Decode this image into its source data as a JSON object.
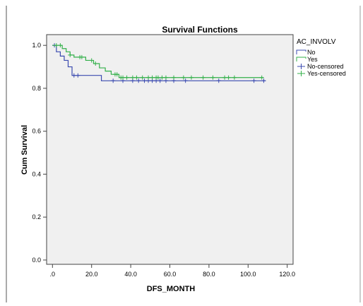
{
  "chart_data": {
    "type": "line",
    "step": true,
    "title": "Survival Functions",
    "xlabel": "DFS_MONTH",
    "ylabel": "Cum Survival",
    "xlim": [
      -3,
      123
    ],
    "ylim": [
      -0.02,
      1.05
    ],
    "x_ticks": [
      0,
      20,
      40,
      60,
      80,
      100,
      120
    ],
    "x_tick_labels": [
      ".0",
      "20.0",
      "40.0",
      "60.0",
      "80.0",
      "100.0",
      "120.0"
    ],
    "y_ticks": [
      0.0,
      0.2,
      0.4,
      0.6,
      0.8,
      1.0
    ],
    "y_tick_labels": [
      "0.0",
      "0.2",
      "0.4",
      "0.6",
      "0.8",
      "1.0"
    ],
    "grid": false,
    "plot_background": "#f0f0f0",
    "legend": {
      "title": "AC_INVOLV",
      "placement": "top-right outside",
      "entries": [
        "No",
        "Yes",
        "No-censored",
        "Yes-censored"
      ]
    },
    "series": [
      {
        "name": "No",
        "color": "#3b4bb0",
        "steps": [
          [
            0,
            1.0
          ],
          [
            2,
            0.97
          ],
          [
            4,
            0.95
          ],
          [
            6,
            0.93
          ],
          [
            8,
            0.9
          ],
          [
            10,
            0.86
          ],
          [
            25,
            0.835
          ],
          [
            109,
            0.835
          ]
        ],
        "censored": [
          1,
          11,
          13,
          31,
          36,
          41,
          44,
          47,
          49,
          51,
          53,
          55,
          58,
          62,
          68,
          85,
          103,
          108
        ]
      },
      {
        "name": "Yes",
        "color": "#33b04a",
        "steps": [
          [
            0,
            1.0
          ],
          [
            5,
            0.985
          ],
          [
            7,
            0.97
          ],
          [
            9,
            0.955
          ],
          [
            11,
            0.945
          ],
          [
            17,
            0.93
          ],
          [
            21,
            0.915
          ],
          [
            24,
            0.895
          ],
          [
            27,
            0.88
          ],
          [
            30,
            0.865
          ],
          [
            34,
            0.85
          ],
          [
            108,
            0.85
          ]
        ],
        "censored": [
          2,
          4,
          9,
          14,
          15,
          20,
          22,
          32,
          33,
          35,
          36,
          38,
          41,
          43,
          46,
          49,
          51,
          53,
          54,
          56,
          58,
          62,
          67,
          71,
          77,
          82,
          88,
          90,
          93,
          107
        ]
      }
    ]
  }
}
